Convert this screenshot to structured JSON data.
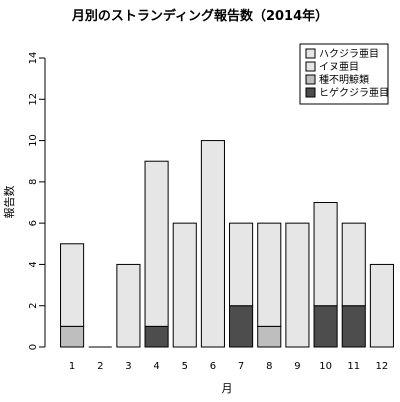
{
  "chart_data": {
    "type": "bar",
    "stacked": true,
    "title": "月別のストランディング報告数（2014年）",
    "xlabel": "月",
    "ylabel": "報告数",
    "ylim": [
      0,
      14
    ],
    "yticks": [
      0,
      2,
      4,
      6,
      8,
      10,
      12,
      14
    ],
    "grid": false,
    "legend_position": "top-right",
    "categories": [
      "1",
      "2",
      "3",
      "4",
      "5",
      "6",
      "7",
      "8",
      "9",
      "10",
      "11",
      "12"
    ],
    "series": [
      {
        "name": "ヒゲクジラ亜目",
        "color": "#4d4d4d",
        "values": [
          0,
          0,
          0,
          1,
          0,
          0,
          2,
          0,
          0,
          2,
          2,
          0
        ]
      },
      {
        "name": "種不明鯨類",
        "color": "#bebebe",
        "values": [
          1,
          0,
          0,
          0,
          0,
          0,
          0,
          1,
          0,
          0,
          0,
          0
        ]
      },
      {
        "name": "イヌ亜目",
        "color": "#e6e6e6",
        "values": [
          0,
          0,
          0,
          0,
          0,
          0,
          0,
          0,
          0,
          0,
          0,
          0
        ]
      },
      {
        "name": "ハクジラ亜目",
        "color": "#e6e6e6",
        "values": [
          4,
          0,
          4,
          8,
          6,
          10,
          4,
          5,
          6,
          5,
          4,
          4
        ]
      }
    ],
    "legend_order": [
      "ハクジラ亜目",
      "イヌ亜目",
      "種不明鯨類",
      "ヒゲクジラ亜目"
    ]
  }
}
